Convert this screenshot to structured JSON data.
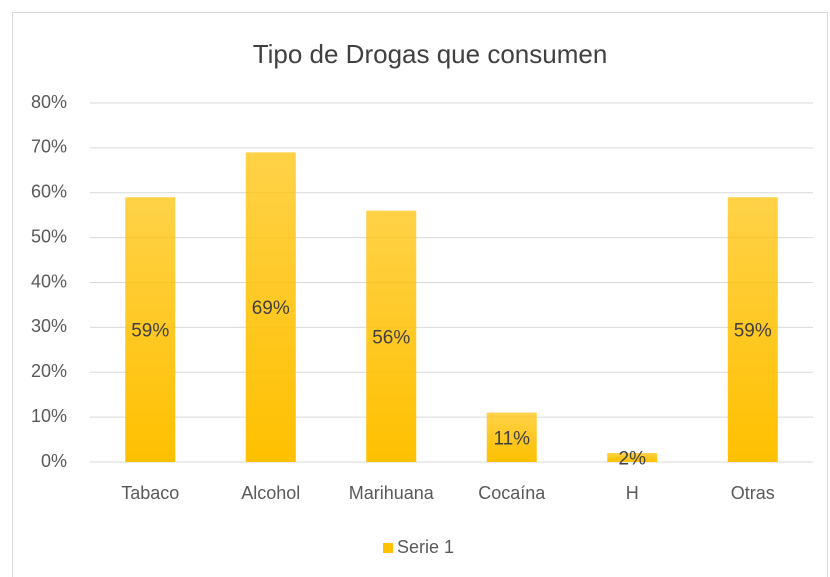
{
  "chart_data": {
    "type": "bar",
    "title": "Tipo de Drogas que consumen",
    "categories": [
      "Tabaco",
      "Alcohol",
      "Marihuana",
      "Cocaína",
      "H",
      "Otras"
    ],
    "series": [
      {
        "name": "Serie 1",
        "color": "#ffc000",
        "values": [
          59,
          69,
          56,
          11,
          2,
          59
        ],
        "value_labels": [
          "59%",
          "69%",
          "56%",
          "11%",
          "2%",
          "59%"
        ]
      }
    ],
    "ylim": [
      0,
      80
    ],
    "yticks": [
      {
        "value": 0,
        "label": "0%"
      },
      {
        "value": 10,
        "label": "10%"
      },
      {
        "value": 20,
        "label": "20%"
      },
      {
        "value": 30,
        "label": "30%"
      },
      {
        "value": 40,
        "label": "40%"
      },
      {
        "value": 50,
        "label": "50%"
      },
      {
        "value": 60,
        "label": "60%"
      },
      {
        "value": 70,
        "label": "70%"
      },
      {
        "value": 80,
        "label": "80%"
      }
    ],
    "grid": true,
    "legend": "bottom"
  }
}
